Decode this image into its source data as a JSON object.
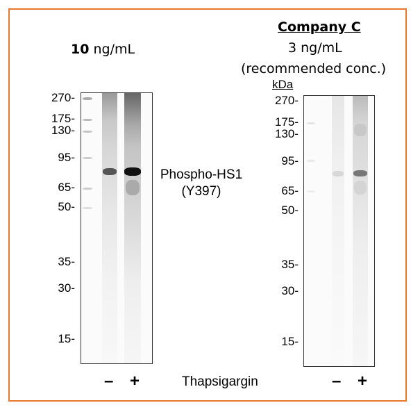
{
  "left_panel": {
    "concentration_bold": "10",
    "concentration_unit": "ng/mL",
    "mw_markers": [
      "270-",
      "175-",
      "130-",
      "95-",
      "65-",
      "50-",
      "35-",
      "30-",
      "15-"
    ]
  },
  "right_panel": {
    "title": "Company C",
    "concentration": "3 ng/mL",
    "note": "(recommended conc.)",
    "unit_label": "kDa",
    "mw_markers": [
      "270-",
      "175-",
      "130-",
      "95-",
      "65-",
      "50-",
      "35-",
      "30-",
      "15-"
    ]
  },
  "target": {
    "line1": "Phospho-HS1",
    "line2": "(Y397)"
  },
  "treatment": {
    "label": "Thapsigargin",
    "minus": "–",
    "plus": "+"
  },
  "colors": {
    "frame": "#e8782e"
  }
}
